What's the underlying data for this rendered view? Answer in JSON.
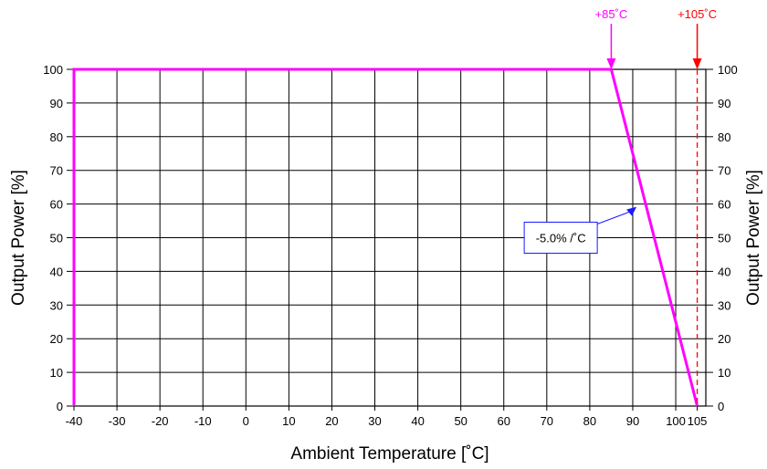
{
  "chart_data": {
    "type": "line",
    "xlabel": "Ambient Temperature [˚C]",
    "ylabel": "Output Power [%]",
    "ylabel_right": "Output Power [%]",
    "xlim": [
      -40,
      107
    ],
    "ylim": [
      0,
      100
    ],
    "x_ticks": [
      -40,
      -30,
      -20,
      -10,
      0,
      10,
      20,
      30,
      40,
      50,
      60,
      70,
      80,
      90,
      100,
      105
    ],
    "y_ticks": [
      0,
      10,
      20,
      30,
      40,
      50,
      60,
      70,
      80,
      90,
      100
    ],
    "grid": true,
    "series": [
      {
        "x": [
          -40,
          -40,
          85,
          105
        ],
        "y": [
          0,
          100,
          100,
          0
        ],
        "color": "#ff00ff"
      }
    ],
    "markers": [
      {
        "x": 85,
        "label": "+85˚C",
        "color": "#ff00ff",
        "dashed_line": false
      },
      {
        "x": 105,
        "label": "+105˚C",
        "color": "#ff0000",
        "dashed_line": true
      }
    ],
    "annotation": {
      "text": "-5.0% /˚C",
      "points_to": {
        "x": 93,
        "y": 60
      },
      "anchor": {
        "x": 86,
        "y": 50
      },
      "color": "#1a1aff"
    }
  }
}
